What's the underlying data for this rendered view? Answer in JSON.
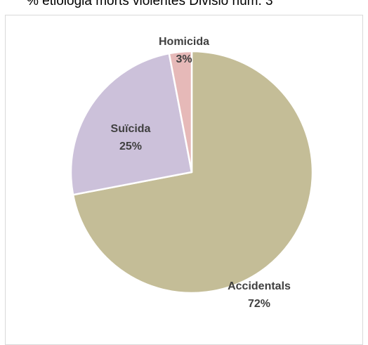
{
  "chart_data": {
    "type": "pie",
    "title": "% etiologia morts violentes Divisió núm. 3",
    "slices": [
      {
        "label": "Accidentals",
        "value": 72,
        "value_label": "72%",
        "color": "#c4bd97"
      },
      {
        "label": "Suïcida",
        "value": 25,
        "value_label": "25%",
        "color": "#ccc1da"
      },
      {
        "label": "Homicida",
        "value": 3,
        "value_label": "3%",
        "color": "#e6b9b8"
      }
    ],
    "slice_order": "clockwise from top",
    "legend": "none",
    "separator_color": "#ffffff"
  }
}
